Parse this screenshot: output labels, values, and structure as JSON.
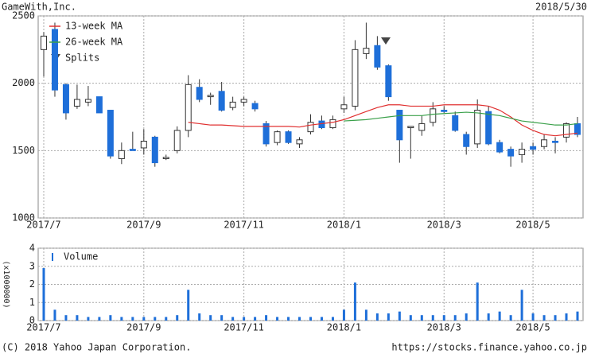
{
  "header": {
    "company": "GameWith,Inc.",
    "date": "2018/5/30"
  },
  "footer": {
    "copyright": "(C) 2018 Yahoo Japan Corporation.",
    "url": "https://stocks.finance.yahoo.co.jp"
  },
  "chart_data": [
    {
      "type": "candlestick",
      "categories": [
        "2017/7",
        null,
        null,
        null,
        null,
        null,
        null,
        null,
        null,
        "2017/9",
        null,
        null,
        null,
        null,
        null,
        null,
        null,
        null,
        "2017/11",
        null,
        null,
        null,
        null,
        null,
        null,
        null,
        null,
        "2018/1",
        null,
        null,
        null,
        null,
        null,
        null,
        null,
        null,
        "2018/3",
        null,
        null,
        null,
        null,
        null,
        null,
        null,
        "2018/5",
        null,
        null,
        null,
        null
      ],
      "open": [
        2250,
        2400,
        1990,
        1830,
        1860,
        1900,
        1800,
        1440,
        1510,
        1520,
        1600,
        1440,
        1500,
        1650,
        1970,
        1900,
        1940,
        1820,
        1860,
        1850,
        1700,
        1560,
        1640,
        1550,
        1640,
        1720,
        1670,
        1810,
        1830,
        2220,
        2280,
        2130,
        1800,
        1670,
        1650,
        1710,
        1800,
        1760,
        1620,
        1550,
        1790,
        1560,
        1510,
        1470,
        1530,
        1530,
        1570,
        1600,
        1700
      ],
      "high": [
        2380,
        2450,
        2000,
        1990,
        1980,
        1900,
        1800,
        1560,
        1640,
        1660,
        1610,
        1470,
        1680,
        2060,
        2030,
        1930,
        2010,
        1900,
        1900,
        1870,
        1720,
        1650,
        1650,
        1600,
        1770,
        1760,
        1760,
        1900,
        2320,
        2450,
        2350,
        2140,
        1800,
        1680,
        1760,
        1860,
        1830,
        1790,
        1640,
        1880,
        1830,
        1580,
        1530,
        1560,
        1560,
        1620,
        1600,
        1710,
        1750
      ],
      "low": [
        2050,
        1900,
        1730,
        1810,
        1830,
        1780,
        1440,
        1400,
        1500,
        1470,
        1380,
        1430,
        1480,
        1600,
        1860,
        1840,
        1790,
        1800,
        1830,
        1790,
        1530,
        1540,
        1550,
        1520,
        1620,
        1660,
        1660,
        1780,
        1800,
        2180,
        2100,
        1870,
        1410,
        1440,
        1610,
        1680,
        1780,
        1640,
        1470,
        1520,
        1540,
        1480,
        1380,
        1410,
        1470,
        1510,
        1480,
        1560,
        1600
      ],
      "close": [
        2350,
        1950,
        1780,
        1880,
        1880,
        1780,
        1460,
        1500,
        1500,
        1570,
        1410,
        1450,
        1650,
        1990,
        1880,
        1910,
        1800,
        1860,
        1880,
        1810,
        1550,
        1640,
        1560,
        1580,
        1710,
        1670,
        1730,
        1840,
        2250,
        2260,
        2120,
        1900,
        1580,
        1680,
        1700,
        1810,
        1790,
        1650,
        1530,
        1800,
        1550,
        1490,
        1460,
        1510,
        1510,
        1580,
        1560,
        1700,
        1620
      ],
      "up_color": "#ffffff",
      "down_color": "#1e6fd9",
      "series": [
        {
          "name": "13-week MA",
          "color": "#e03030",
          "values": [
            null,
            null,
            null,
            null,
            null,
            null,
            null,
            null,
            null,
            null,
            null,
            null,
            null,
            1710,
            1700,
            1690,
            1690,
            1685,
            1680,
            1680,
            1680,
            1680,
            1680,
            1675,
            1690,
            1700,
            1710,
            1730,
            1760,
            1790,
            1820,
            1840,
            1840,
            1830,
            1830,
            1830,
            1840,
            1840,
            1840,
            1840,
            1830,
            1800,
            1750,
            1690,
            1650,
            1620,
            1610,
            1620,
            1630
          ]
        },
        {
          "name": "26-week MA",
          "color": "#3aa04a",
          "values": [
            null,
            null,
            null,
            null,
            null,
            null,
            null,
            null,
            null,
            null,
            null,
            null,
            null,
            null,
            null,
            null,
            null,
            null,
            null,
            null,
            null,
            null,
            null,
            null,
            null,
            null,
            null,
            1720,
            1725,
            1730,
            1740,
            1750,
            1760,
            1760,
            1760,
            1770,
            1775,
            1780,
            1785,
            1780,
            1770,
            1760,
            1740,
            1720,
            1710,
            1700,
            1690,
            1690,
            1700
          ]
        }
      ],
      "splits_label": "Splits",
      "ylim": [
        1000,
        2500
      ],
      "yticks": [
        1000,
        1500,
        2000,
        2500
      ],
      "grid": true
    },
    {
      "type": "bar",
      "categories": [
        "2017/7",
        null,
        null,
        null,
        null,
        null,
        null,
        null,
        null,
        "2017/9",
        null,
        null,
        null,
        null,
        null,
        null,
        null,
        null,
        "2017/11",
        null,
        null,
        null,
        null,
        null,
        null,
        null,
        null,
        "2018/1",
        null,
        null,
        null,
        null,
        null,
        null,
        null,
        null,
        "2018/3",
        null,
        null,
        null,
        null,
        null,
        null,
        null,
        "2018/5",
        null,
        null,
        null,
        null
      ],
      "series": [
        {
          "name": "Volume",
          "color": "#1e6fd9",
          "values": [
            2.9,
            0.6,
            0.3,
            0.3,
            0.2,
            0.2,
            0.3,
            0.2,
            0.2,
            0.2,
            0.2,
            0.2,
            0.3,
            1.7,
            0.4,
            0.3,
            0.3,
            0.2,
            0.2,
            0.2,
            0.3,
            0.2,
            0.2,
            0.2,
            0.2,
            0.2,
            0.2,
            0.6,
            2.1,
            0.6,
            0.4,
            0.4,
            0.5,
            0.3,
            0.3,
            0.3,
            0.3,
            0.3,
            0.4,
            2.1,
            0.4,
            0.5,
            0.3,
            1.7,
            0.4,
            0.3,
            0.3,
            0.4,
            0.5
          ]
        }
      ],
      "ylabel": "(x1000000)",
      "ylim": [
        0,
        4
      ],
      "yticks": [
        0,
        1,
        2,
        3,
        4
      ],
      "grid": true
    }
  ]
}
